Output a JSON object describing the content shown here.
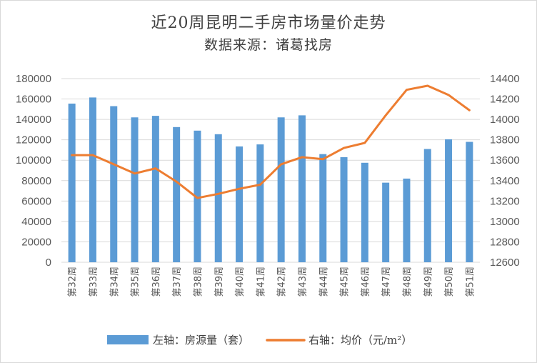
{
  "chart_data": {
    "type": "bar",
    "title": "近20周昆明二手房市场量价走势",
    "subtitle": "数据来源：诸葛找房",
    "categories": [
      "第32周",
      "第33周",
      "第34周",
      "第35周",
      "第36周",
      "第37周",
      "第38周",
      "第39周",
      "第40周",
      "第41周",
      "第42周",
      "第43周",
      "第44周",
      "第45周",
      "第46周",
      "第47周",
      "第48周",
      "第49周",
      "第50周",
      "第51周"
    ],
    "series": [
      {
        "name": "左轴：房源量（套）",
        "type": "bar",
        "axis": "left",
        "color": "#5b9bd5",
        "values": [
          155500,
          161500,
          153000,
          142000,
          143500,
          132500,
          129000,
          125500,
          113500,
          115500,
          142000,
          144000,
          106000,
          103000,
          97500,
          78000,
          82000,
          111000,
          120500,
          118000
        ]
      },
      {
        "name": "右轴：均价（元/m²）",
        "type": "line",
        "axis": "right",
        "color": "#ed7d31",
        "values": [
          13650,
          13650,
          13560,
          13470,
          13520,
          13390,
          13230,
          13270,
          13320,
          13360,
          13560,
          13630,
          13610,
          13720,
          13770,
          14040,
          14290,
          14330,
          14240,
          14090
        ]
      }
    ],
    "y_left": {
      "min": 0,
      "max": 180000,
      "step": 20000
    },
    "y_right": {
      "min": 12600,
      "max": 14400,
      "step": 200
    },
    "grid": true,
    "legend_position": "bottom"
  }
}
